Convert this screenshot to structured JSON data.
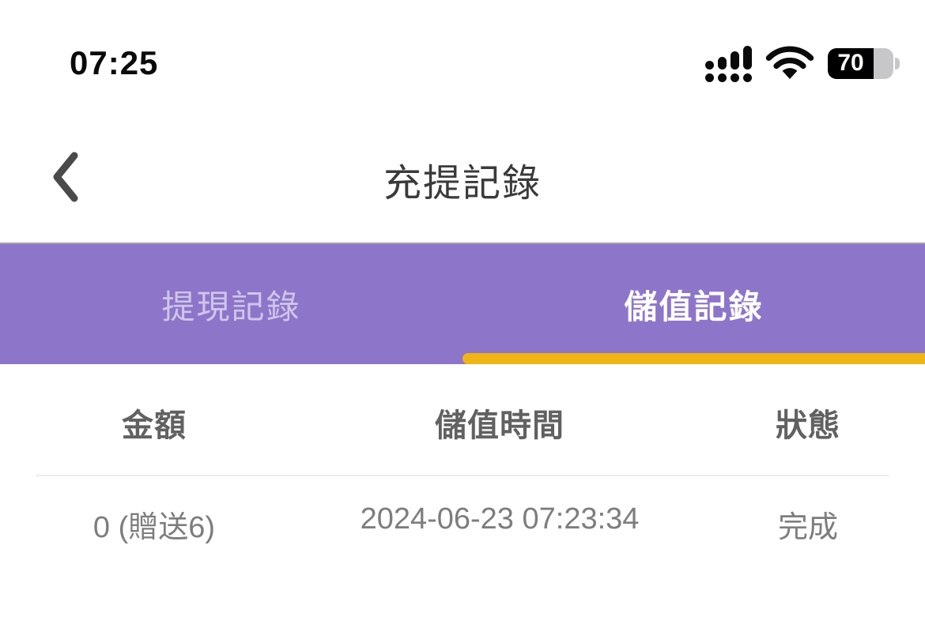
{
  "status_bar": {
    "time": "07:25",
    "battery_percent": "70"
  },
  "nav": {
    "title": "充提記錄"
  },
  "tabs": {
    "withdrawal": {
      "label": "提現記錄",
      "active": false
    },
    "deposit": {
      "label": "儲值記錄",
      "active": true
    }
  },
  "records_table": {
    "columns": [
      "金額",
      "儲值時間",
      "狀態"
    ],
    "rows": [
      {
        "amount": "0 (贈送6)",
        "time": "2024-06-23 07:23:34",
        "status": "完成"
      }
    ]
  },
  "colors": {
    "tab-bar-bg": "#8d75ca",
    "tab-indicator": "#f0b414",
    "tab-active-text": "#ffffff",
    "tab-inactive-text": "#cfc6e9",
    "title-text": "#3a3a3a",
    "table-header-text": "#616161",
    "table-row-text": "#7d7d7d"
  }
}
